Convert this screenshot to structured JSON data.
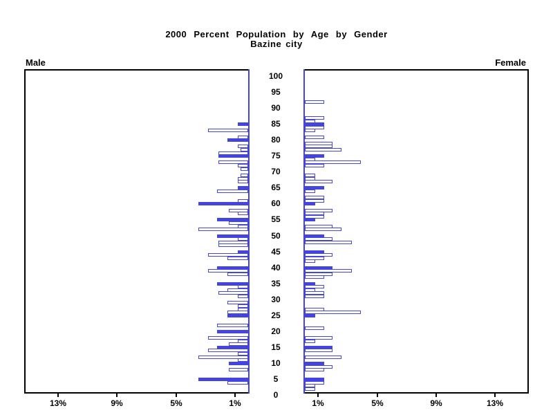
{
  "title": {
    "line1": "2000 Percent Population by Age by Gender",
    "line2": "Bazine city"
  },
  "panel_labels": {
    "male": "Male",
    "female": "Female"
  },
  "colors": {
    "bar_blue": "#4444e0",
    "frame_black": "#000000",
    "background": "#ffffff"
  },
  "chart_data": {
    "type": "bar",
    "subtype": "population-pyramid",
    "title": "2000 Percent Population by Age by Gender",
    "subtitle": "Bazine city",
    "left_series_label": "Male",
    "right_series_label": "Female",
    "units": "percent of total population per single year of age",
    "style_note": "bars at ages divisible by 5 are solid filled; other ages outlined",
    "pct_axis": {
      "ticks": [
        1,
        5,
        9,
        13
      ],
      "tick_labels": [
        "1%",
        "5%",
        "9%",
        "13%"
      ],
      "max": 15
    },
    "age_axis": {
      "min": 0,
      "max": 100,
      "step": 5
    },
    "male": [
      {
        "age": 85,
        "pct": 0.7,
        "filled": true
      },
      {
        "age": 83,
        "pct": 2.7,
        "filled": false
      },
      {
        "age": 81,
        "pct": 0.7,
        "filled": false
      },
      {
        "age": 80,
        "pct": 1.4,
        "filled": true
      },
      {
        "age": 78,
        "pct": 0.7,
        "filled": false
      },
      {
        "age": 77,
        "pct": 0.5,
        "filled": false
      },
      {
        "age": 76,
        "pct": 2.0,
        "filled": false
      },
      {
        "age": 75,
        "pct": 2.0,
        "filled": true
      },
      {
        "age": 73,
        "pct": 2.0,
        "filled": false
      },
      {
        "age": 72,
        "pct": 0.7,
        "filled": false
      },
      {
        "age": 71,
        "pct": 0.5,
        "filled": false
      },
      {
        "age": 69,
        "pct": 0.5,
        "filled": false
      },
      {
        "age": 68,
        "pct": 0.7,
        "filled": false
      },
      {
        "age": 67,
        "pct": 0.7,
        "filled": false
      },
      {
        "age": 65,
        "pct": 0.7,
        "filled": true
      },
      {
        "age": 64,
        "pct": 2.1,
        "filled": false
      },
      {
        "age": 61,
        "pct": 0.7,
        "filled": false
      },
      {
        "age": 60,
        "pct": 3.4,
        "filled": true
      },
      {
        "age": 58,
        "pct": 1.3,
        "filled": false
      },
      {
        "age": 57,
        "pct": 0.7,
        "filled": false
      },
      {
        "age": 55,
        "pct": 2.1,
        "filled": true
      },
      {
        "age": 54,
        "pct": 1.3,
        "filled": false
      },
      {
        "age": 53,
        "pct": 0.7,
        "filled": false
      },
      {
        "age": 52,
        "pct": 3.4,
        "filled": false
      },
      {
        "age": 50,
        "pct": 2.1,
        "filled": true
      },
      {
        "age": 49,
        "pct": 0.7,
        "filled": false
      },
      {
        "age": 48,
        "pct": 2.0,
        "filled": false
      },
      {
        "age": 47,
        "pct": 2.0,
        "filled": false
      },
      {
        "age": 45,
        "pct": 0.7,
        "filled": true
      },
      {
        "age": 44,
        "pct": 2.7,
        "filled": false
      },
      {
        "age": 43,
        "pct": 1.4,
        "filled": false
      },
      {
        "age": 40,
        "pct": 2.1,
        "filled": true
      },
      {
        "age": 39,
        "pct": 2.7,
        "filled": false
      },
      {
        "age": 38,
        "pct": 1.4,
        "filled": false
      },
      {
        "age": 35,
        "pct": 2.1,
        "filled": true
      },
      {
        "age": 34,
        "pct": 0.7,
        "filled": false
      },
      {
        "age": 33,
        "pct": 1.4,
        "filled": false
      },
      {
        "age": 32,
        "pct": 2.0,
        "filled": false
      },
      {
        "age": 31,
        "pct": 0.7,
        "filled": false
      },
      {
        "age": 29,
        "pct": 1.4,
        "filled": false
      },
      {
        "age": 28,
        "pct": 0.7,
        "filled": false
      },
      {
        "age": 27,
        "pct": 0.7,
        "filled": false
      },
      {
        "age": 26,
        "pct": 1.4,
        "filled": false
      },
      {
        "age": 25,
        "pct": 1.4,
        "filled": true
      },
      {
        "age": 22,
        "pct": 2.1,
        "filled": false
      },
      {
        "age": 20,
        "pct": 2.1,
        "filled": true
      },
      {
        "age": 18,
        "pct": 2.7,
        "filled": false
      },
      {
        "age": 17,
        "pct": 0.7,
        "filled": false
      },
      {
        "age": 16,
        "pct": 1.3,
        "filled": false
      },
      {
        "age": 15,
        "pct": 2.1,
        "filled": true
      },
      {
        "age": 14,
        "pct": 2.7,
        "filled": false
      },
      {
        "age": 13,
        "pct": 0.7,
        "filled": false
      },
      {
        "age": 12,
        "pct": 3.4,
        "filled": false
      },
      {
        "age": 11,
        "pct": 0.7,
        "filled": false
      },
      {
        "age": 10,
        "pct": 1.3,
        "filled": true
      },
      {
        "age": 8,
        "pct": 1.3,
        "filled": false
      },
      {
        "age": 5,
        "pct": 3.4,
        "filled": true
      },
      {
        "age": 4,
        "pct": 1.4,
        "filled": false
      }
    ],
    "female": [
      {
        "age": 92,
        "pct": 1.3,
        "filled": false
      },
      {
        "age": 87,
        "pct": 1.3,
        "filled": false
      },
      {
        "age": 86,
        "pct": 0.7,
        "filled": false
      },
      {
        "age": 85,
        "pct": 1.3,
        "filled": true
      },
      {
        "age": 84,
        "pct": 1.3,
        "filled": false
      },
      {
        "age": 83,
        "pct": 0.7,
        "filled": false
      },
      {
        "age": 81,
        "pct": 1.3,
        "filled": false
      },
      {
        "age": 79,
        "pct": 1.9,
        "filled": false
      },
      {
        "age": 78,
        "pct": 1.9,
        "filled": false
      },
      {
        "age": 77,
        "pct": 2.5,
        "filled": false
      },
      {
        "age": 75,
        "pct": 1.3,
        "filled": true
      },
      {
        "age": 74,
        "pct": 0.7,
        "filled": false
      },
      {
        "age": 73,
        "pct": 3.8,
        "filled": false
      },
      {
        "age": 72,
        "pct": 1.3,
        "filled": false
      },
      {
        "age": 69,
        "pct": 0.7,
        "filled": false
      },
      {
        "age": 68,
        "pct": 0.7,
        "filled": false
      },
      {
        "age": 67,
        "pct": 1.9,
        "filled": false
      },
      {
        "age": 65,
        "pct": 1.3,
        "filled": true
      },
      {
        "age": 64,
        "pct": 0.7,
        "filled": false
      },
      {
        "age": 62,
        "pct": 1.3,
        "filled": false
      },
      {
        "age": 61,
        "pct": 1.3,
        "filled": false
      },
      {
        "age": 60,
        "pct": 0.7,
        "filled": true
      },
      {
        "age": 58,
        "pct": 1.9,
        "filled": false
      },
      {
        "age": 57,
        "pct": 1.3,
        "filled": false
      },
      {
        "age": 56,
        "pct": 1.3,
        "filled": false
      },
      {
        "age": 55,
        "pct": 0.7,
        "filled": true
      },
      {
        "age": 53,
        "pct": 1.9,
        "filled": false
      },
      {
        "age": 52,
        "pct": 2.5,
        "filled": false
      },
      {
        "age": 50,
        "pct": 1.3,
        "filled": true
      },
      {
        "age": 49,
        "pct": 1.9,
        "filled": false
      },
      {
        "age": 48,
        "pct": 3.2,
        "filled": false
      },
      {
        "age": 45,
        "pct": 1.3,
        "filled": true
      },
      {
        "age": 44,
        "pct": 1.9,
        "filled": false
      },
      {
        "age": 43,
        "pct": 1.3,
        "filled": false
      },
      {
        "age": 42,
        "pct": 0.7,
        "filled": false
      },
      {
        "age": 40,
        "pct": 1.9,
        "filled": true
      },
      {
        "age": 39,
        "pct": 3.2,
        "filled": false
      },
      {
        "age": 38,
        "pct": 1.9,
        "filled": false
      },
      {
        "age": 37,
        "pct": 1.3,
        "filled": false
      },
      {
        "age": 35,
        "pct": 0.7,
        "filled": true
      },
      {
        "age": 34,
        "pct": 1.3,
        "filled": false
      },
      {
        "age": 33,
        "pct": 0.7,
        "filled": false
      },
      {
        "age": 32,
        "pct": 1.3,
        "filled": false
      },
      {
        "age": 31,
        "pct": 1.3,
        "filled": false
      },
      {
        "age": 27,
        "pct": 1.3,
        "filled": false
      },
      {
        "age": 26,
        "pct": 3.8,
        "filled": false
      },
      {
        "age": 25,
        "pct": 0.7,
        "filled": true
      },
      {
        "age": 21,
        "pct": 1.3,
        "filled": false
      },
      {
        "age": 18,
        "pct": 1.9,
        "filled": false
      },
      {
        "age": 17,
        "pct": 0.7,
        "filled": false
      },
      {
        "age": 15,
        "pct": 1.9,
        "filled": true
      },
      {
        "age": 14,
        "pct": 1.9,
        "filled": false
      },
      {
        "age": 12,
        "pct": 2.5,
        "filled": false
      },
      {
        "age": 10,
        "pct": 1.3,
        "filled": true
      },
      {
        "age": 9,
        "pct": 1.9,
        "filled": false
      },
      {
        "age": 8,
        "pct": 1.3,
        "filled": false
      },
      {
        "age": 5,
        "pct": 1.3,
        "filled": true
      },
      {
        "age": 4,
        "pct": 1.3,
        "filled": false
      },
      {
        "age": 3,
        "pct": 0.7,
        "filled": false
      },
      {
        "age": 2,
        "pct": 0.7,
        "filled": false
      }
    ]
  }
}
